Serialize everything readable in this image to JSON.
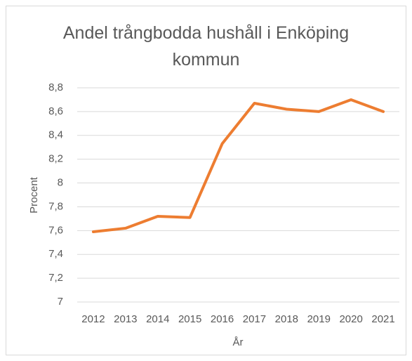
{
  "chart_data": {
    "type": "line",
    "title": "Andel trångbodda hushåll i Enköping kommun",
    "x_label": "År",
    "y_label": "Procent",
    "categories": [
      "2012",
      "2013",
      "2014",
      "2015",
      "2016",
      "2017",
      "2018",
      "2019",
      "2020",
      "2021"
    ],
    "series": [
      {
        "name": "Andel trångbodda",
        "color": "#ed7d31",
        "values": [
          7.59,
          7.62,
          7.72,
          7.71,
          8.33,
          8.67,
          8.62,
          8.6,
          8.7,
          8.6
        ]
      }
    ],
    "ylim": [
      7,
      8.8
    ],
    "yticks": [
      7,
      {
        "value": 7.2,
        "label": "7,2"
      },
      {
        "value": 7.4,
        "label": "7,4"
      },
      {
        "value": 7.6,
        "label": "7,6"
      },
      {
        "value": 7.8,
        "label": "7,8"
      },
      8,
      {
        "value": 8.2,
        "label": "8,2"
      },
      {
        "value": 8.4,
        "label": "8,4"
      },
      {
        "value": 8.6,
        "label": "8,6"
      },
      {
        "value": 8.8,
        "label": "8,8"
      }
    ],
    "grid": true,
    "legend": false
  }
}
